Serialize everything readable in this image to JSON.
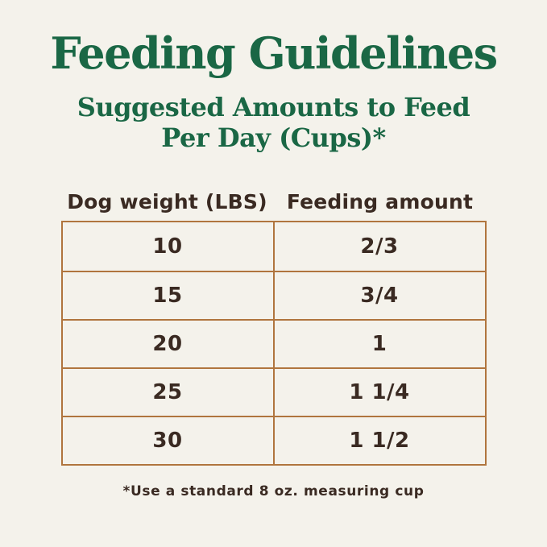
{
  "title": "Feeding Guidelines",
  "subtitle_line1": "Suggested Amounts to Feed",
  "subtitle_line2": "Per Day (Cups)*",
  "table": {
    "columns": [
      "Dog weight (LBS)",
      "Feeding amount"
    ],
    "rows": [
      {
        "weight": "10",
        "amount": "2/3"
      },
      {
        "weight": "15",
        "amount": "3/4"
      },
      {
        "weight": "20",
        "amount": "1"
      },
      {
        "weight": "25",
        "amount": "1 1/4"
      },
      {
        "weight": "30",
        "amount": "1 1/2"
      }
    ]
  },
  "footnote": "*Use a standard 8 oz. measuring cup",
  "colors": {
    "background": "#f4f2eb",
    "heading_green": "#1a6745",
    "table_border": "#b0753e",
    "text_dark": "#3a2a22"
  },
  "chart_data": {
    "type": "table",
    "title": "Feeding Guidelines",
    "subtitle": "Suggested Amounts to Feed Per Day (Cups)*",
    "columns": [
      "Dog weight (LBS)",
      "Feeding amount"
    ],
    "rows": [
      [
        "10",
        "2/3"
      ],
      [
        "15",
        "3/4"
      ],
      [
        "20",
        "1"
      ],
      [
        "25",
        "1 1/4"
      ],
      [
        "30",
        "1 1/2"
      ]
    ],
    "footnote": "*Use a standard 8 oz. measuring cup",
    "layout": "two-column centered table, header labels above grid, full outer border and inner gridlines"
  }
}
